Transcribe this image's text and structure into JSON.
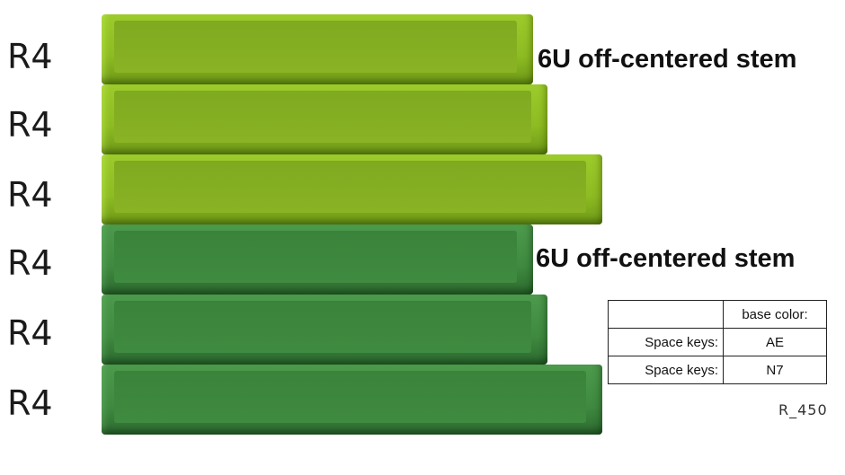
{
  "rows": [
    {
      "label": "R4",
      "color": "#8dbb22"
    },
    {
      "label": "R4",
      "color": "#8dbb22"
    },
    {
      "label": "R4",
      "color": "#8dbb22"
    },
    {
      "label": "R4",
      "color": "#3f8a40"
    },
    {
      "label": "R4",
      "color": "#3f8a40"
    },
    {
      "label": "R4",
      "color": "#3f8a40"
    }
  ],
  "annotations": {
    "lime_stem": "6U off-centered stem",
    "green_stem": "6U off-centered stem"
  },
  "table": {
    "header": {
      "col1": "",
      "col2": "base color:"
    },
    "rows": [
      {
        "col1": "Space keys:",
        "col2": "AE"
      },
      {
        "col1": "Space keys:",
        "col2": "N7"
      }
    ]
  },
  "reference": "R_450"
}
